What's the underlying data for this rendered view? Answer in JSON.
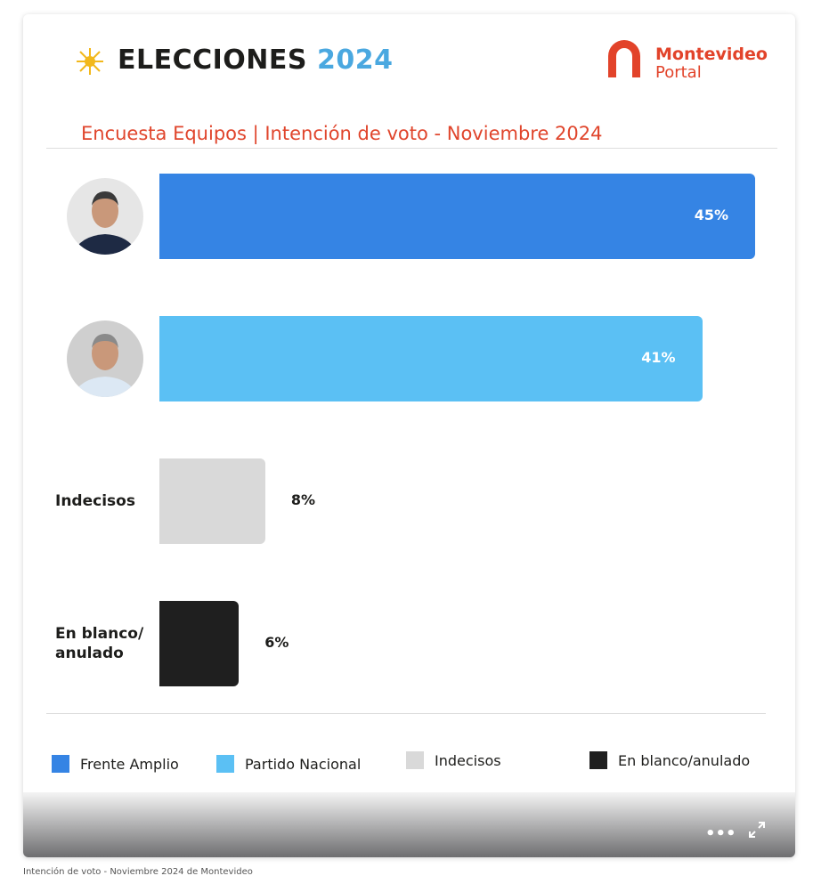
{
  "header": {
    "title_main": "ELECCIONES",
    "title_year": "2024",
    "logo_line1": "Montevideo",
    "logo_line2": "Portal"
  },
  "chart_data": {
    "type": "bar",
    "orientation": "horizontal",
    "title": "Encuesta Equipos | Intención de voto - Noviembre 2024",
    "categories": [
      null,
      null,
      "Indecisos",
      "En blanco/ anulado"
    ],
    "values": [
      45,
      41,
      8,
      6
    ],
    "value_labels": [
      "45%",
      "41%",
      "8%",
      "6%"
    ],
    "colors": [
      "#3584e4",
      "#5bc0f4",
      "#d9d9d9",
      "#1f1f1f"
    ],
    "legend": [
      "Frente Amplio",
      "Partido Nacional",
      "Indecisos",
      "En blanco/anulado"
    ]
  },
  "caption": "Intención de voto - Noviembre 2024 de Montevideo"
}
